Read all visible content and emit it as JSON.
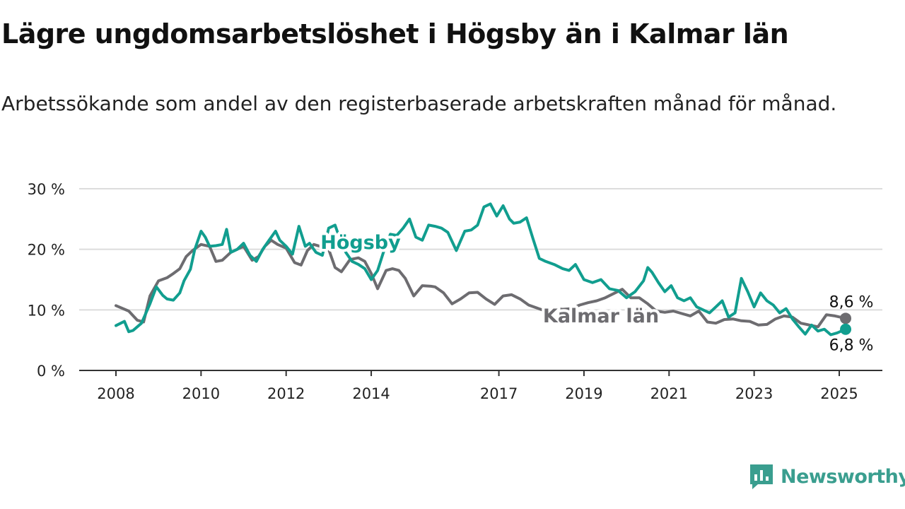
{
  "title": "Lägre ungdomsarbetslöshet i Högsby än i Kalmar län",
  "subtitle": "Arbetssökande som andel av den registerbaserade arbetskraften månad för månad.",
  "brand": {
    "name": "Newsworthy",
    "icon": "newsworthy-logo-icon",
    "color": "#3a9e8f"
  },
  "chart_data": {
    "type": "line",
    "y_ticks": [
      "0 %",
      "10 %",
      "20 %",
      "30 %"
    ],
    "y_values": [
      0,
      10,
      20,
      30
    ],
    "x_ticks": [
      "2008",
      "2010",
      "2012",
      "2014",
      "2017",
      "2019",
      "2021",
      "2023",
      "2025"
    ],
    "x_tick_values": [
      2008,
      2010,
      2012,
      2014,
      2017,
      2019,
      2021,
      2023,
      2025
    ],
    "xlim": [
      2007.2,
      2026.0
    ],
    "ylim": [
      0,
      30
    ],
    "grid": true,
    "series": [
      {
        "name": "Kalmar län",
        "color": "#6d6c70",
        "end_label": "8,6 %",
        "x": [
          2008.0,
          2008.3,
          2008.5,
          2008.65,
          2008.8,
          2009.0,
          2009.2,
          2009.35,
          2009.5,
          2009.65,
          2009.8,
          2010.0,
          2010.2,
          2010.35,
          2010.5,
          2010.7,
          2010.85,
          2011.0,
          2011.2,
          2011.35,
          2011.5,
          2011.65,
          2011.8,
          2012.0,
          2012.2,
          2012.35,
          2012.5,
          2012.65,
          2012.8,
          2013.0,
          2013.15,
          2013.3,
          2013.5,
          2013.7,
          2013.85,
          2014.0,
          2014.15,
          2014.35,
          2014.5,
          2014.65,
          2014.8,
          2015.0,
          2015.2,
          2015.4,
          2015.5,
          2015.7,
          2015.9,
          2016.1,
          2016.3,
          2016.5,
          2016.7,
          2016.9,
          2017.1,
          2017.3,
          2017.5,
          2017.7,
          2017.9,
          2018.1,
          2018.3,
          2018.5,
          2018.7,
          2018.9,
          2019.1,
          2019.3,
          2019.5,
          2019.7,
          2019.9,
          2020.1,
          2020.3,
          2020.5,
          2020.7,
          2020.9,
          2021.1,
          2021.3,
          2021.5,
          2021.7,
          2021.9,
          2022.1,
          2022.3,
          2022.5,
          2022.7,
          2022.9,
          2023.1,
          2023.3,
          2023.5,
          2023.7,
          2023.9,
          2024.1,
          2024.3,
          2024.5,
          2024.7,
          2024.9,
          2025.15
        ],
        "y": [
          10.7,
          9.8,
          8.3,
          8.0,
          12.3,
          14.8,
          15.3,
          16.0,
          16.8,
          18.8,
          19.8,
          20.8,
          20.5,
          18.0,
          18.2,
          19.5,
          20.0,
          20.5,
          18.2,
          18.8,
          20.5,
          21.5,
          20.8,
          20.2,
          17.8,
          17.4,
          19.8,
          20.8,
          20.5,
          20.0,
          17.0,
          16.3,
          18.3,
          18.6,
          18.0,
          16.0,
          13.5,
          16.5,
          16.8,
          16.5,
          15.2,
          12.3,
          14.0,
          13.9,
          13.8,
          12.8,
          11.0,
          11.8,
          12.8,
          12.9,
          11.8,
          10.9,
          12.3,
          12.5,
          11.8,
          10.8,
          10.3,
          9.8,
          10.2,
          10.1,
          10.2,
          10.8,
          11.2,
          11.5,
          12.0,
          12.7,
          13.4,
          12.0,
          12.0,
          11.0,
          9.8,
          9.6,
          9.8,
          9.4,
          9.0,
          9.8,
          8.0,
          7.8,
          8.4,
          8.5,
          8.2,
          8.1,
          7.5,
          7.6,
          8.5,
          9.0,
          8.8,
          7.8,
          7.5,
          7.2,
          9.2,
          9.0,
          8.6
        ]
      },
      {
        "name": "Högsby",
        "color": "#119e8f",
        "end_label": "6,8 %",
        "x": [
          2008.0,
          2008.2,
          2008.3,
          2008.4,
          2008.6,
          2008.8,
          2008.95,
          2009.1,
          2009.2,
          2009.35,
          2009.5,
          2009.6,
          2009.75,
          2009.85,
          2010.0,
          2010.1,
          2010.2,
          2010.35,
          2010.5,
          2010.6,
          2010.7,
          2010.85,
          2011.0,
          2011.15,
          2011.3,
          2011.45,
          2011.6,
          2011.75,
          2011.85,
          2012.0,
          2012.15,
          2012.3,
          2012.45,
          2012.55,
          2012.7,
          2012.85,
          2013.0,
          2013.15,
          2013.3,
          2013.4,
          2013.55,
          2013.7,
          2013.85,
          2014.0,
          2014.15,
          2014.3,
          2014.45,
          2014.6,
          2014.75,
          2014.9,
          2015.05,
          2015.2,
          2015.35,
          2015.5,
          2015.65,
          2015.8,
          2016.0,
          2016.2,
          2016.35,
          2016.5,
          2016.65,
          2016.8,
          2016.95,
          2017.1,
          2017.25,
          2017.35,
          2017.5,
          2017.65,
          2017.8,
          2017.95,
          2018.1,
          2018.3,
          2018.5,
          2018.65,
          2018.8,
          2019.0,
          2019.2,
          2019.4,
          2019.6,
          2019.8,
          2020.0,
          2020.2,
          2020.4,
          2020.5,
          2020.6,
          2020.75,
          2020.9,
          2021.05,
          2021.2,
          2021.35,
          2021.5,
          2021.65,
          2021.8,
          2021.95,
          2022.1,
          2022.25,
          2022.4,
          2022.55,
          2022.7,
          2022.85,
          2023.0,
          2023.15,
          2023.3,
          2023.45,
          2023.6,
          2023.75,
          2023.9,
          2024.05,
          2024.2,
          2024.35,
          2024.5,
          2024.65,
          2024.8,
          2024.95,
          2025.15
        ],
        "y": [
          7.4,
          8.1,
          6.4,
          6.6,
          7.8,
          11.0,
          13.8,
          12.4,
          11.8,
          11.6,
          12.8,
          14.8,
          16.7,
          19.9,
          23.0,
          22.0,
          20.5,
          20.6,
          20.8,
          23.3,
          19.5,
          20.0,
          21.0,
          19.0,
          18.0,
          20.0,
          21.5,
          23.0,
          21.5,
          20.5,
          19.2,
          23.8,
          20.5,
          21.0,
          19.5,
          19.0,
          23.5,
          24.0,
          21.0,
          19.5,
          18.0,
          17.5,
          16.8,
          15.0,
          16.5,
          19.8,
          22.5,
          22.3,
          23.5,
          25.0,
          22.0,
          21.5,
          24.0,
          23.8,
          23.5,
          22.8,
          19.8,
          23.0,
          23.2,
          24.0,
          27.0,
          27.5,
          25.5,
          27.2,
          25.0,
          24.3,
          24.5,
          25.2,
          21.8,
          18.5,
          18.0,
          17.5,
          16.8,
          16.5,
          17.5,
          15.0,
          14.5,
          15.0,
          13.5,
          13.2,
          12.0,
          13.0,
          14.8,
          17.0,
          16.2,
          14.5,
          13.0,
          14.0,
          12.0,
          11.5,
          12.0,
          10.5,
          10.0,
          9.5,
          10.5,
          11.5,
          8.8,
          9.5,
          15.2,
          13.0,
          10.5,
          12.8,
          11.5,
          10.8,
          9.5,
          10.2,
          8.5,
          7.2,
          6.0,
          7.5,
          6.5,
          6.8,
          5.9,
          6.2,
          6.8
        ]
      }
    ]
  }
}
